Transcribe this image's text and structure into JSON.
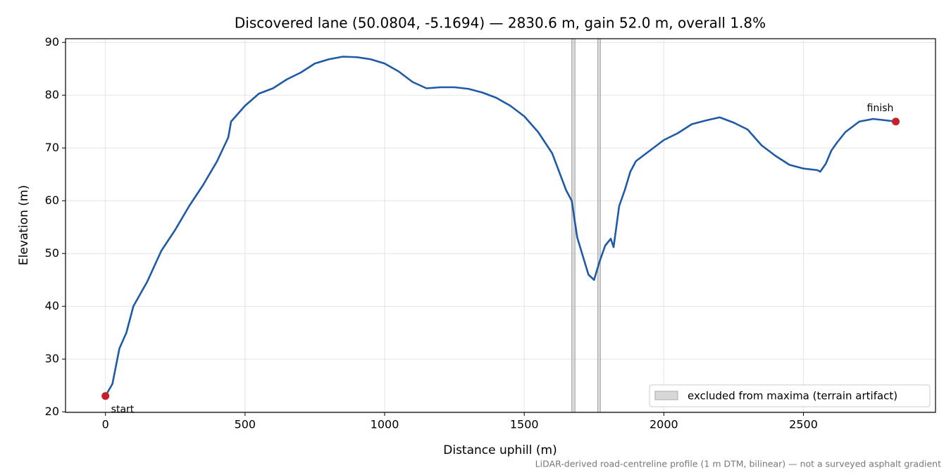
{
  "chart_data": {
    "type": "line",
    "title": "Discovered lane (50.0804, -5.1694) — 2830.6 m, gain 52.0 m, overall 1.8%",
    "x_label": "Distance uphill (m)",
    "y_label": "Elevation (m)",
    "footnote": "LiDAR-derived road-centreline profile (1 m DTM, bilinear) — not a surveyed asphalt gradient",
    "xlim": [
      -143,
      2973
    ],
    "ylim": [
      19.9,
      90.7
    ],
    "xticks": [
      0,
      500,
      1000,
      1500,
      2000,
      2500
    ],
    "yticks": [
      20,
      30,
      40,
      50,
      60,
      70,
      80,
      90
    ],
    "grid": true,
    "legend_position": "lower right",
    "series": [
      {
        "name": "elevation",
        "color": "#1f5aa6",
        "x": [
          0,
          25,
          50,
          75,
          100,
          150,
          200,
          250,
          300,
          350,
          400,
          440,
          450,
          500,
          550,
          600,
          650,
          700,
          750,
          800,
          850,
          900,
          950,
          1000,
          1050,
          1100,
          1150,
          1200,
          1250,
          1300,
          1350,
          1400,
          1450,
          1500,
          1550,
          1600,
          1650,
          1670,
          1690,
          1710,
          1730,
          1750,
          1770,
          1790,
          1810,
          1820,
          1840,
          1860,
          1880,
          1900,
          1950,
          2000,
          2050,
          2100,
          2150,
          2200,
          2250,
          2300,
          2350,
          2400,
          2450,
          2500,
          2550,
          2560,
          2580,
          2600,
          2620,
          2650,
          2700,
          2750,
          2800,
          2830.6
        ],
        "values": [
          23,
          25.3,
          32,
          35,
          40,
          44.7,
          50.5,
          54.5,
          59,
          63,
          67.5,
          72,
          75,
          78,
          80.3,
          81.3,
          83,
          84.3,
          86,
          86.8,
          87.3,
          87.2,
          86.8,
          86,
          84.5,
          82.5,
          81.3,
          81.5,
          81.5,
          81.2,
          80.5,
          79.5,
          78,
          76,
          73,
          69,
          62,
          60,
          53,
          49.5,
          46,
          45,
          48.5,
          51.5,
          52.8,
          51.2,
          59,
          62,
          65.5,
          67.5,
          69.5,
          71.5,
          72.8,
          74.5,
          75.2,
          75.8,
          74.8,
          73.5,
          70.5,
          68.5,
          66.8,
          66.1,
          65.8,
          65.5,
          67,
          69.5,
          71,
          73,
          75,
          75.5,
          75.2,
          75
        ]
      }
    ],
    "excluded_spans": [
      [
        1670,
        1682
      ],
      [
        1763,
        1773
      ]
    ],
    "excluded_label": "excluded from maxima (terrain artifact)",
    "excluded_color": "#c8c8c8",
    "points": [
      {
        "label": "start",
        "x": 0,
        "value": 23
      },
      {
        "label": "finish",
        "x": 2830.6,
        "value": 75
      }
    ],
    "point_color": "#c8202a"
  }
}
